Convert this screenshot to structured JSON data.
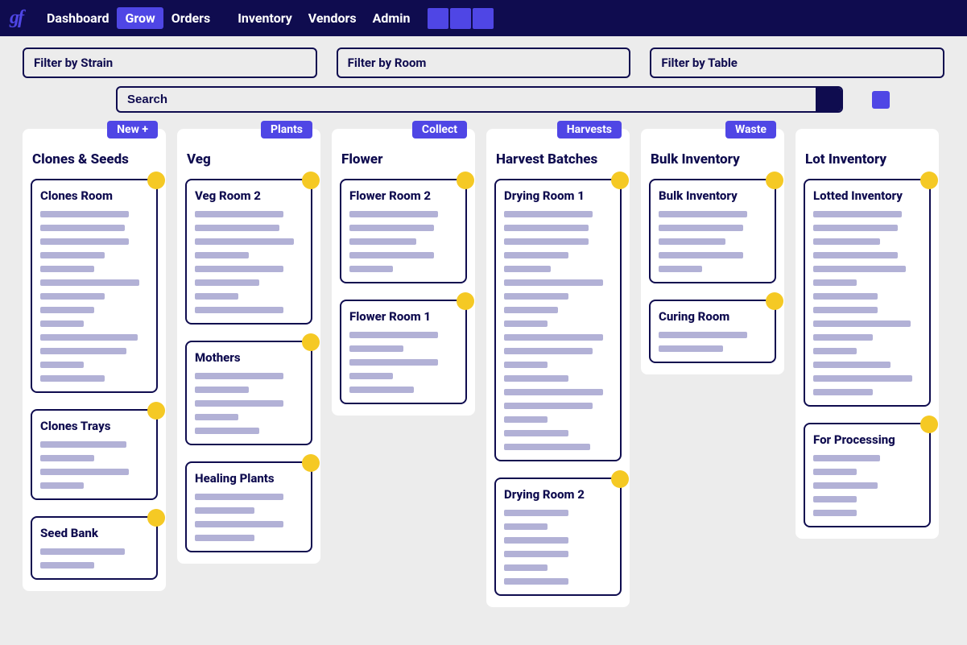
{
  "colors": {
    "navy": "#0f0c4f",
    "accent": "#4f46e5",
    "bg": "#ececec",
    "card_bg": "#ffffff",
    "placeholder_line": "#b2b1d6",
    "dot": "#f5c924"
  },
  "logo_text": "gf",
  "nav": {
    "items": [
      {
        "label": "Dashboard",
        "active": false
      },
      {
        "label": "Grow",
        "active": true
      },
      {
        "label": "Orders",
        "active": false,
        "gap_after": true
      },
      {
        "label": "Inventory",
        "active": false
      },
      {
        "label": "Vendors",
        "active": false
      },
      {
        "label": "Admin",
        "active": false
      }
    ],
    "square_count": 3
  },
  "filters": {
    "strain": "Filter by Strain",
    "room": "Filter by Room",
    "table": "Filter by Table",
    "search_placeholder": "Search"
  },
  "columns": [
    {
      "title": "Clones & Seeds",
      "tag": "New +",
      "cards": [
        {
          "title": "Clones Room",
          "lines": [
            82,
            78,
            82,
            60,
            50,
            92,
            60,
            50,
            40,
            90,
            80,
            40,
            60
          ]
        },
        {
          "title": "Clones Trays",
          "lines": [
            80,
            50,
            82,
            40
          ]
        },
        {
          "title": "Seed Bank",
          "lines": [
            78,
            50
          ]
        }
      ]
    },
    {
      "title": "Veg",
      "tag": "Plants",
      "cards": [
        {
          "title": "Veg Room 2",
          "lines": [
            82,
            78,
            92,
            50,
            82,
            60,
            40,
            82
          ]
        },
        {
          "title": "Mothers",
          "lines": [
            82,
            50,
            82,
            40,
            60
          ]
        },
        {
          "title": "Healing Plants",
          "lines": [
            82,
            55,
            82,
            55
          ]
        }
      ]
    },
    {
      "title": "Flower",
      "tag": "Collect",
      "cards": [
        {
          "title": "Flower Room 2",
          "lines": [
            82,
            78,
            62,
            78,
            40
          ]
        },
        {
          "title": "Flower Room 1",
          "lines": [
            82,
            50,
            82,
            40,
            60
          ]
        }
      ]
    },
    {
      "title": "Harvest Batches",
      "tag": "Harvests",
      "cards": [
        {
          "title": "Drying Room 1",
          "lines": [
            82,
            78,
            78,
            60,
            43,
            92,
            60,
            50,
            40,
            92,
            82,
            40,
            60,
            92,
            82,
            40,
            60,
            80
          ]
        },
        {
          "title": "Drying Room 2",
          "lines": [
            60,
            40,
            60,
            60,
            40,
            60
          ]
        }
      ]
    },
    {
      "title": "Bulk Inventory",
      "tag": "Waste",
      "cards": [
        {
          "title": "Bulk Inventory",
          "lines": [
            82,
            78,
            62,
            78,
            40
          ]
        },
        {
          "title": "Curing Room",
          "lines": [
            82,
            60
          ]
        }
      ]
    },
    {
      "title": "Lot Inventory",
      "tag": null,
      "cards": [
        {
          "title": "Lotted Inventory",
          "lines": [
            82,
            78,
            62,
            78,
            86,
            40,
            60,
            60,
            90,
            55,
            40,
            72,
            92,
            55
          ]
        },
        {
          "title": "For Processing",
          "lines": [
            62,
            40,
            60,
            40,
            40
          ]
        }
      ]
    }
  ]
}
